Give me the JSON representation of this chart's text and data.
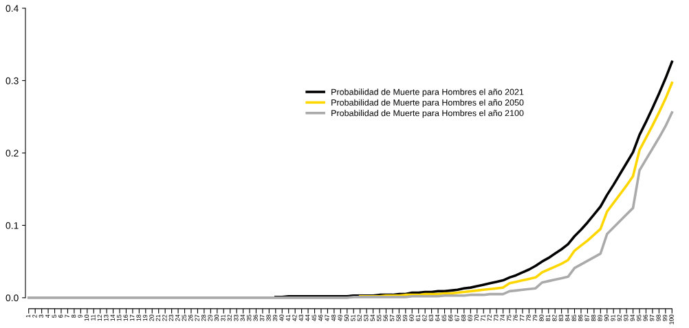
{
  "chart_data": {
    "type": "line",
    "categories": [
      "1",
      "2",
      "3",
      "4",
      "5",
      "6",
      "7",
      "8",
      "9",
      "10",
      "11",
      "12",
      "13",
      "14",
      "15",
      "16",
      "17",
      "18",
      "19",
      "20",
      "21",
      "22",
      "23",
      "24",
      "25",
      "26",
      "27",
      "28",
      "29",
      "30",
      "31",
      "32",
      "33",
      "34",
      "35",
      "36",
      "37",
      "38",
      "39",
      "40",
      "41",
      "42",
      "43",
      "44",
      "45",
      "46",
      "47",
      "48",
      "49",
      "50",
      "51",
      "52",
      "53",
      "54",
      "55",
      "56",
      "57",
      "58",
      "59",
      "60",
      "61",
      "62",
      "63",
      "64",
      "65",
      "66",
      "67",
      "68",
      "69",
      "70",
      "71",
      "72",
      "73",
      "74",
      "75",
      "76",
      "77",
      "78",
      "79",
      "80",
      "81",
      "82",
      "83",
      "84",
      "85",
      "86",
      "87",
      "88",
      "89",
      "90",
      "91",
      "92",
      "93",
      "94",
      "95",
      "96",
      "97",
      "98",
      "99",
      "100"
    ],
    "series": [
      {
        "name": "Probabilidad de Muerte para Hombres el año 2021",
        "color": "#000000",
        "values": [
          null,
          null,
          null,
          null,
          null,
          null,
          null,
          null,
          null,
          null,
          null,
          null,
          null,
          null,
          null,
          null,
          null,
          null,
          null,
          null,
          null,
          null,
          null,
          null,
          null,
          null,
          null,
          null,
          null,
          null,
          null,
          null,
          null,
          null,
          null,
          null,
          null,
          null,
          0.001,
          0.001,
          0.002,
          0.002,
          0.002,
          0.002,
          0.002,
          0.002,
          0.002,
          0.002,
          0.002,
          0.002,
          0.003,
          0.003,
          0.003,
          0.003,
          0.004,
          0.004,
          0.004,
          0.005,
          0.005,
          0.007,
          0.007,
          0.008,
          0.008,
          0.009,
          0.009,
          0.01,
          0.011,
          0.013,
          0.014,
          0.016,
          0.018,
          0.02,
          0.022,
          0.024,
          0.028,
          0.031,
          0.035,
          0.039,
          0.044,
          0.05,
          0.055,
          0.061,
          0.067,
          0.074,
          0.085,
          0.094,
          0.104,
          0.115,
          0.126,
          0.142,
          0.156,
          0.171,
          0.186,
          0.201,
          0.225,
          0.243,
          0.262,
          0.282,
          0.303,
          0.326
        ]
      },
      {
        "name": "Probabilidad de Muerte para Hombres el año 2050",
        "color": "#ffd700",
        "values": [
          null,
          null,
          null,
          null,
          null,
          null,
          null,
          null,
          null,
          null,
          null,
          null,
          null,
          null,
          null,
          null,
          null,
          null,
          null,
          null,
          null,
          null,
          null,
          null,
          null,
          null,
          null,
          null,
          null,
          null,
          null,
          null,
          null,
          null,
          null,
          null,
          null,
          null,
          null,
          null,
          null,
          null,
          null,
          null,
          null,
          null,
          null,
          null,
          null,
          null,
          null,
          0.002,
          0.002,
          0.002,
          0.002,
          0.003,
          0.003,
          0.003,
          0.004,
          0.004,
          0.004,
          0.005,
          0.005,
          0.005,
          0.006,
          0.006,
          0.007,
          0.008,
          0.009,
          0.01,
          0.011,
          0.012,
          0.013,
          0.014,
          0.02,
          0.022,
          0.024,
          0.026,
          0.028,
          0.035,
          0.039,
          0.043,
          0.047,
          0.052,
          0.065,
          0.072,
          0.079,
          0.087,
          0.095,
          0.119,
          0.131,
          0.143,
          0.155,
          0.168,
          0.204,
          0.221,
          0.238,
          0.256,
          0.275,
          0.297
        ]
      },
      {
        "name": "Probabilidad de Muerte para Hombres el año 2100",
        "color": "#aaaaaa",
        "values": [
          0,
          0,
          0,
          0,
          0,
          0,
          0,
          0,
          0,
          0,
          0,
          0,
          0,
          0,
          0,
          0,
          0,
          0,
          0,
          0,
          0,
          0,
          0,
          0,
          0,
          0,
          0,
          0,
          0,
          0,
          0,
          0,
          0,
          0,
          0,
          0,
          0,
          0,
          0,
          0,
          0,
          0,
          0,
          0,
          0,
          0,
          0,
          0,
          0,
          0,
          0.001,
          0.001,
          0.001,
          0.001,
          0.001,
          0.001,
          0.001,
          0.001,
          0.001,
          0.002,
          0.002,
          0.002,
          0.002,
          0.002,
          0.003,
          0.003,
          0.003,
          0.003,
          0.004,
          0.004,
          0.004,
          0.005,
          0.005,
          0.005,
          0.009,
          0.01,
          0.011,
          0.012,
          0.013,
          0.021,
          0.023,
          0.025,
          0.027,
          0.029,
          0.041,
          0.046,
          0.051,
          0.056,
          0.061,
          0.088,
          0.097,
          0.106,
          0.115,
          0.124,
          0.176,
          0.191,
          0.206,
          0.221,
          0.237,
          0.256
        ]
      }
    ],
    "ylim": [
      0,
      0.4
    ],
    "yticks": [
      {
        "value": 0,
        "label": "0.0"
      },
      {
        "value": 0.1,
        "label": "0.1"
      },
      {
        "value": 0.2,
        "label": "0.2"
      },
      {
        "value": 0.3,
        "label": "0.3"
      },
      {
        "value": 0.4,
        "label": "0.4"
      }
    ],
    "legend": "top",
    "grid": false,
    "marker": "none",
    "line_style": "solid"
  }
}
